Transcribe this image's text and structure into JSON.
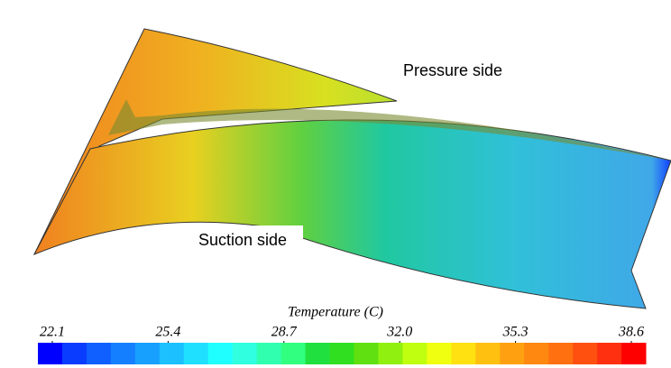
{
  "labels": {
    "pressure": "Pressure side",
    "suction": "Suction side"
  },
  "colorbar": {
    "title": "Temperature (C)",
    "lim": [
      22.1,
      38.6
    ],
    "ticks": [
      22.1,
      25.4,
      28.7,
      {
        "value": 32,
        "label": "32.0"
      },
      35.3,
      38.6
    ],
    "colors": [
      "#0000ff",
      "#0a3cff",
      "#1060ff",
      "#1480ff",
      "#18a0ff",
      "#1cc0ff",
      "#20e0ff",
      "#20ffff",
      "#30ffe0",
      "#30ffb0",
      "#30ff80",
      "#20e040",
      "#30e020",
      "#60e010",
      "#90f010",
      "#c0ff10",
      "#f0ff10",
      "#ffe010",
      "#ffc010",
      "#ffa010",
      "#ff8810",
      "#ff7010",
      "#ff5010",
      "#ff3010",
      "#ff0000"
    ]
  }
}
